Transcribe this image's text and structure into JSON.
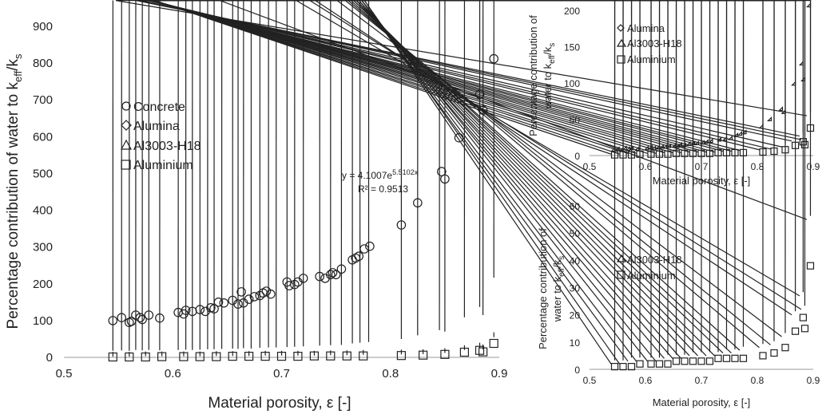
{
  "chart_data": [
    {
      "type": "scatter",
      "panel": "main",
      "xlabel": "Material porosity, ε [-]",
      "ylabel": {
        "pre": "Percentage contribution of water to k",
        "sub1": "eff",
        "mid": "/k",
        "sub2": "s"
      },
      "xlim": [
        0.5,
        0.9
      ],
      "ylim": [
        0,
        900
      ],
      "xticks": [
        "0.5",
        "0.6",
        "0.7",
        "0.8",
        "0.9"
      ],
      "yticks": [
        "0",
        "100",
        "200",
        "300",
        "400",
        "500",
        "600",
        "700",
        "800",
        "900"
      ],
      "legend": [
        "Concrete",
        "Alumina",
        "Al3003-H18",
        "Aluminium"
      ],
      "legend_position": "upper-left",
      "trendline": {
        "label_pre": "y = 4.1007e",
        "label_exp": "5.5102x",
        "r2": "R² = 0.9513"
      },
      "series": [
        {
          "name": "Concrete",
          "marker": "circle",
          "points": [
            [
              0.545,
              100
            ],
            [
              0.553,
              108
            ],
            [
              0.56,
              95
            ],
            [
              0.562,
              98
            ],
            [
              0.566,
              115
            ],
            [
              0.57,
              108
            ],
            [
              0.572,
              103
            ],
            [
              0.578,
              115
            ],
            [
              0.588,
              107
            ],
            [
              0.605,
              122
            ],
            [
              0.61,
              118
            ],
            [
              0.612,
              128
            ],
            [
              0.618,
              125
            ],
            [
              0.625,
              130
            ],
            [
              0.63,
              125
            ],
            [
              0.635,
              135
            ],
            [
              0.638,
              132
            ],
            [
              0.642,
              150
            ],
            [
              0.647,
              148
            ],
            [
              0.655,
              155
            ],
            [
              0.66,
              145
            ],
            [
              0.663,
              178
            ],
            [
              0.665,
              148
            ],
            [
              0.67,
              158
            ],
            [
              0.675,
              165
            ],
            [
              0.68,
              168
            ],
            [
              0.683,
              175
            ],
            [
              0.686,
              180
            ],
            [
              0.69,
              172
            ],
            [
              0.705,
              205
            ],
            [
              0.707,
              195
            ],
            [
              0.712,
              198
            ],
            [
              0.715,
              205
            ],
            [
              0.72,
              215
            ],
            [
              0.735,
              220
            ],
            [
              0.74,
              215
            ],
            [
              0.745,
              225
            ],
            [
              0.747,
              230
            ],
            [
              0.75,
              225
            ],
            [
              0.755,
              240
            ],
            [
              0.765,
              265
            ],
            [
              0.768,
              270
            ],
            [
              0.771,
              275
            ],
            [
              0.776,
              295
            ],
            [
              0.781,
              302
            ],
            [
              0.81,
              360
            ],
            [
              0.825,
              420
            ],
            [
              0.847,
              505
            ],
            [
              0.85,
              485
            ],
            [
              0.863,
              597
            ],
            [
              0.882,
              715
            ],
            [
              0.885,
              672
            ],
            [
              0.895,
              812
            ]
          ]
        },
        {
          "name": "Alumina",
          "marker": "diamond",
          "points": [
            [
              0.545,
              6
            ],
            [
              0.553,
              7
            ],
            [
              0.56,
              6
            ],
            [
              0.566,
              8
            ],
            [
              0.572,
              7
            ],
            [
              0.578,
              8
            ],
            [
              0.588,
              7
            ],
            [
              0.605,
              8
            ],
            [
              0.612,
              9
            ],
            [
              0.618,
              8
            ],
            [
              0.625,
              9
            ],
            [
              0.632,
              10
            ],
            [
              0.638,
              10
            ],
            [
              0.645,
              11
            ],
            [
              0.655,
              12
            ],
            [
              0.66,
              11
            ],
            [
              0.665,
              13
            ],
            [
              0.672,
              12
            ],
            [
              0.68,
              14
            ],
            [
              0.688,
              15
            ],
            [
              0.695,
              15
            ],
            [
              0.705,
              16
            ],
            [
              0.712,
              17
            ],
            [
              0.72,
              18
            ],
            [
              0.735,
              20
            ],
            [
              0.745,
              21
            ],
            [
              0.755,
              22
            ],
            [
              0.765,
              26
            ],
            [
              0.772,
              28
            ],
            [
              0.78,
              30
            ],
            [
              0.81,
              38
            ],
            [
              0.825,
              48
            ],
            [
              0.845,
              62
            ],
            [
              0.85,
              58
            ],
            [
              0.868,
              97
            ],
            [
              0.882,
              125
            ],
            [
              0.885,
              103
            ],
            [
              0.895,
              205
            ]
          ]
        },
        {
          "name": "Al3003-H18",
          "marker": "triangle",
          "points": [
            [
              0.545,
              2
            ],
            [
              0.56,
              2
            ],
            [
              0.575,
              3
            ],
            [
              0.59,
              3
            ],
            [
              0.61,
              3
            ],
            [
              0.625,
              3
            ],
            [
              0.64,
              4
            ],
            [
              0.655,
              4
            ],
            [
              0.67,
              4
            ],
            [
              0.685,
              5
            ],
            [
              0.7,
              5
            ],
            [
              0.715,
              5
            ],
            [
              0.73,
              5
            ],
            [
              0.745,
              6
            ],
            [
              0.76,
              6
            ],
            [
              0.775,
              7
            ],
            [
              0.81,
              8
            ],
            [
              0.83,
              9
            ],
            [
              0.85,
              12
            ],
            [
              0.868,
              20
            ],
            [
              0.882,
              27
            ],
            [
              0.885,
              22
            ],
            [
              0.895,
              55
            ]
          ]
        },
        {
          "name": "Aluminium",
          "marker": "square",
          "points": [
            [
              0.545,
              1
            ],
            [
              0.56,
              1
            ],
            [
              0.575,
              1
            ],
            [
              0.59,
              2
            ],
            [
              0.61,
              2
            ],
            [
              0.625,
              2
            ],
            [
              0.64,
              2
            ],
            [
              0.655,
              3
            ],
            [
              0.67,
              3
            ],
            [
              0.685,
              3
            ],
            [
              0.7,
              3
            ],
            [
              0.715,
              3
            ],
            [
              0.73,
              4
            ],
            [
              0.745,
              4
            ],
            [
              0.76,
              4
            ],
            [
              0.775,
              4
            ],
            [
              0.81,
              5
            ],
            [
              0.83,
              6
            ],
            [
              0.85,
              8
            ],
            [
              0.868,
              14
            ],
            [
              0.882,
              19
            ],
            [
              0.885,
              15
            ],
            [
              0.895,
              38
            ]
          ]
        }
      ]
    },
    {
      "type": "scatter",
      "panel": "top-right",
      "xlabel": "Material porosity, ε [-]",
      "ylabel1": "Percentage contribution of",
      "ylabel2": {
        "pre": "water to k",
        "sub1": "eff",
        "mid": "/k",
        "sub2": "s"
      },
      "xlim": [
        0.5,
        0.9
      ],
      "ylim": [
        0,
        220
      ],
      "xticks": [
        "0.5",
        "0.6",
        "0.7",
        "0.8",
        "0.9"
      ],
      "yticks": [
        "0",
        "50",
        "100",
        "150",
        "200"
      ],
      "legend": [
        "Alumina",
        "Al3003-H18",
        "Aluminium"
      ],
      "legend_position": "upper-left",
      "series_ref": [
        "Alumina",
        "Al3003-H18",
        "Aluminium"
      ]
    },
    {
      "type": "scatter",
      "panel": "bottom-right",
      "xlabel": "Material porosity, ε [-]",
      "ylabel1": "Percentage contribution of",
      "ylabel2": {
        "pre": "water to k",
        "sub1": "eff",
        "mid": "/k",
        "sub2": "s"
      },
      "xlim": [
        0.5,
        0.9
      ],
      "ylim": [
        0,
        60
      ],
      "xticks": [
        "0.5",
        "0.6",
        "0.7",
        "0.8",
        "0.9"
      ],
      "yticks": [
        "0",
        "10",
        "20",
        "30",
        "40",
        "50",
        "60"
      ],
      "legend": [
        "Al3003-H18",
        "Aluminium"
      ],
      "legend_position": "upper-left",
      "series_ref": [
        "Al3003-H18",
        "Aluminium"
      ]
    }
  ]
}
